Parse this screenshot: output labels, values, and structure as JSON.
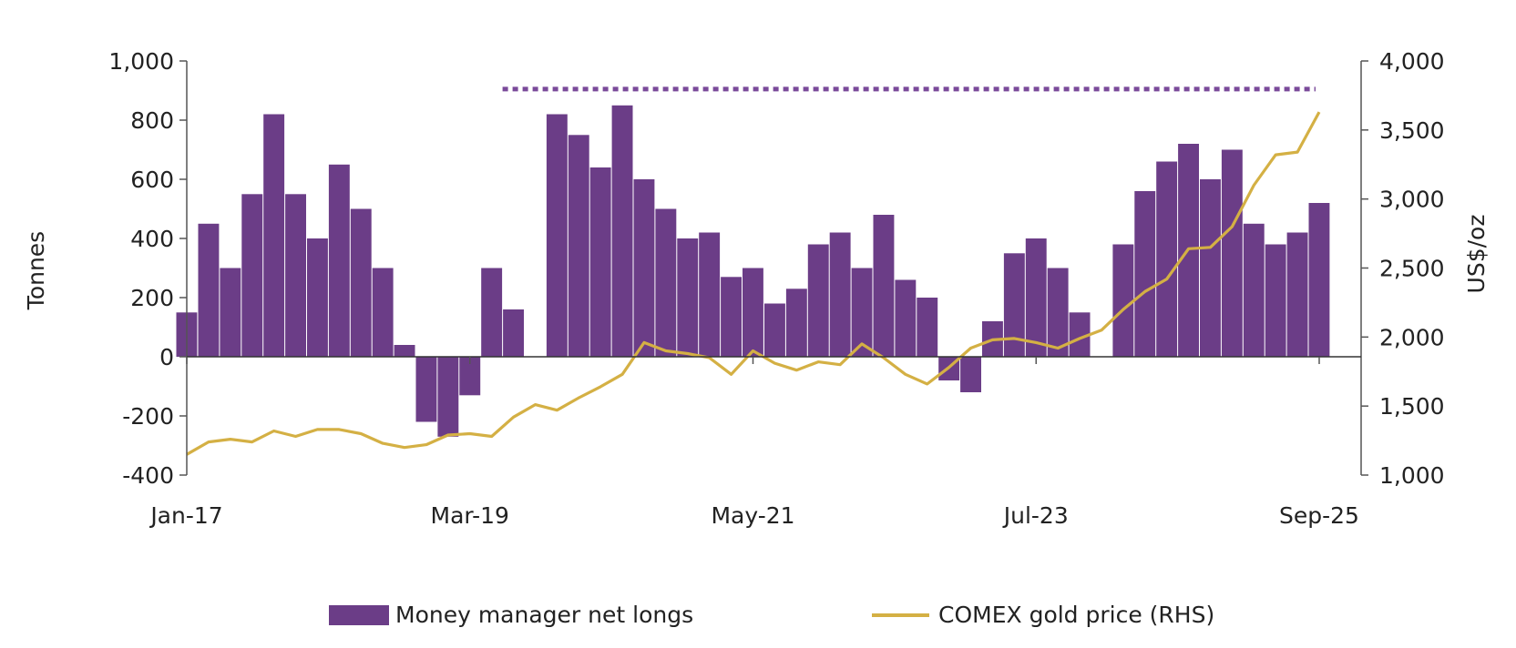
{
  "chart_data": {
    "type": "bar",
    "title": "",
    "ylabel": "Tonnes",
    "y2label": "US$/oz",
    "ylim": [
      -400,
      1000
    ],
    "y2lim": [
      1000,
      4000
    ],
    "yticks": [
      "1,000",
      "800",
      "600",
      "400",
      "200",
      "0",
      "-200",
      "-400"
    ],
    "y2ticks": [
      "4,000",
      "3,500",
      "3,000",
      "2,500",
      "2,000",
      "1,500",
      "1,000"
    ],
    "xticks": [
      "Jan-17",
      "Mar-19",
      "May-21",
      "Jul-23",
      "Sep-25"
    ],
    "legend_position": "bottom",
    "colors": {
      "bars": "#6b3d87",
      "line": "#d4b044",
      "reference": "#7a4a9a"
    },
    "reference_line": {
      "value": 905,
      "start": "Jun-19",
      "end": "Sep-25",
      "style": "dotted"
    },
    "series": [
      {
        "name": "Money manager net longs",
        "kind": "bar",
        "axis": "left",
        "x": [
          "Jan-17",
          "Mar-17",
          "May-17",
          "Jul-17",
          "Sep-17",
          "Nov-17",
          "Jan-18",
          "Mar-18",
          "May-18",
          "Jul-18",
          "Sep-18",
          "Nov-18",
          "Jan-19",
          "Mar-19",
          "May-19",
          "Jul-19",
          "Sep-19",
          "Nov-19",
          "Jan-20",
          "Mar-20",
          "May-20",
          "Jul-20",
          "Sep-20",
          "Nov-20",
          "Jan-21",
          "Mar-21",
          "May-21",
          "Jul-21",
          "Sep-21",
          "Nov-21",
          "Jan-22",
          "Mar-22",
          "May-22",
          "Jul-22",
          "Sep-22",
          "Nov-22",
          "Jan-23",
          "Mar-23",
          "May-23",
          "Jul-23",
          "Sep-23",
          "Nov-23",
          "Jan-24",
          "Mar-24",
          "May-24",
          "Jul-24",
          "Sep-24",
          "Nov-24",
          "Jan-25",
          "Mar-25",
          "May-25",
          "Jul-25",
          "Sep-25"
        ],
        "values": [
          150,
          450,
          300,
          550,
          820,
          550,
          400,
          650,
          500,
          300,
          40,
          -220,
          -270,
          -130,
          300,
          160,
          0,
          820,
          750,
          640,
          850,
          600,
          500,
          400,
          420,
          270,
          300,
          180,
          230,
          380,
          420,
          300,
          480,
          260,
          200,
          -80,
          -120,
          120,
          350,
          400,
          300,
          150,
          0,
          380,
          560,
          660,
          720,
          600,
          700,
          450,
          380,
          420,
          520
        ]
      },
      {
        "name": "COMEX gold price (RHS)",
        "kind": "line",
        "axis": "right",
        "x": [
          "Jan-17",
          "Mar-17",
          "May-17",
          "Jul-17",
          "Sep-17",
          "Nov-17",
          "Jan-18",
          "Mar-18",
          "May-18",
          "Jul-18",
          "Sep-18",
          "Nov-18",
          "Jan-19",
          "Mar-19",
          "May-19",
          "Jul-19",
          "Sep-19",
          "Nov-19",
          "Jan-20",
          "Mar-20",
          "May-20",
          "Jul-20",
          "Sep-20",
          "Nov-20",
          "Jan-21",
          "Mar-21",
          "May-21",
          "Jul-21",
          "Sep-21",
          "Nov-21",
          "Jan-22",
          "Mar-22",
          "May-22",
          "Jul-22",
          "Sep-22",
          "Nov-22",
          "Jan-23",
          "Mar-23",
          "May-23",
          "Jul-23",
          "Sep-23",
          "Nov-23",
          "Jan-24",
          "Mar-24",
          "May-24",
          "Jul-24",
          "Sep-24",
          "Nov-24",
          "Jan-25",
          "Mar-25",
          "May-25",
          "Jul-25",
          "Sep-25"
        ],
        "values": [
          1150,
          1240,
          1260,
          1240,
          1320,
          1280,
          1330,
          1330,
          1300,
          1230,
          1200,
          1220,
          1290,
          1300,
          1280,
          1420,
          1510,
          1470,
          1560,
          1640,
          1730,
          1960,
          1900,
          1880,
          1850,
          1730,
          1900,
          1810,
          1760,
          1820,
          1800,
          1950,
          1850,
          1730,
          1660,
          1780,
          1920,
          1980,
          1990,
          1960,
          1920,
          1990,
          2050,
          2200,
          2330,
          2420,
          2640,
          2650,
          2800,
          3100,
          3320,
          3340,
          3630
        ]
      }
    ]
  }
}
